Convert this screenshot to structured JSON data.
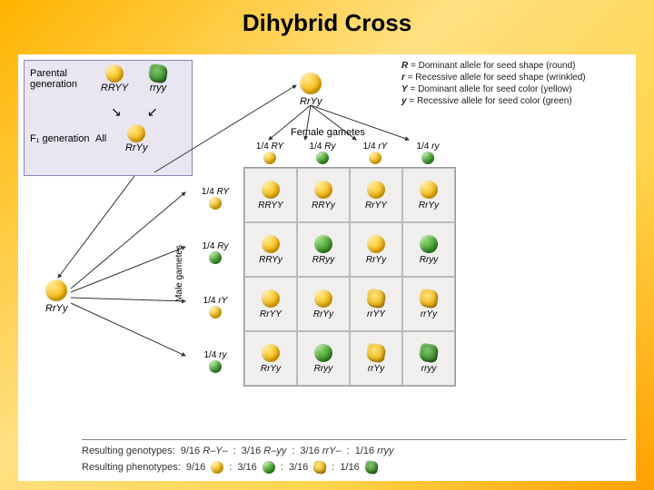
{
  "title": "Dihybrid Cross",
  "title_fontsize": 26,
  "background_gradient": [
    "#ffb300",
    "#ffc838",
    "#ffe082",
    "#ffd54f",
    "#ffa000"
  ],
  "parental_box": {
    "border_color": "#8c7fc2",
    "bg_color": "#e9e6f2",
    "row1_label": "Parental generation",
    "p1": {
      "color": "yellow",
      "wrinkled": false,
      "genotype": "RRYY"
    },
    "p2": {
      "color": "green",
      "wrinkled": true,
      "genotype": "rryy"
    },
    "row2_label": "F₁ generation",
    "row2_note": "All",
    "f1": {
      "color": "yellow",
      "wrinkled": false,
      "genotype": "RrYy"
    }
  },
  "legend": [
    {
      "sym": "R",
      "text": " = Dominant allele for seed shape (round)"
    },
    {
      "sym": "r",
      "text": " = Recessive allele for seed shape (wrinkled)"
    },
    {
      "sym": "Y",
      "text": " = Dominant allele for seed color (yellow)"
    },
    {
      "sym": "y",
      "text": " = Recessive allele for seed color (green)"
    }
  ],
  "cross_parent": {
    "genotype": "RrYy",
    "color": "yellow",
    "wrinkled": false
  },
  "female_label": "Female gametes",
  "male_label": "Male gametes",
  "gametes": [
    "RY",
    "Ry",
    "rY",
    "ry"
  ],
  "gamete_fraction": "1/4",
  "seed_colors": {
    "yellow": "#f5b400",
    "green": "#2e8b1f"
  },
  "grid": [
    [
      {
        "g": "RRYY",
        "c": "y",
        "w": false
      },
      {
        "g": "RRYy",
        "c": "y",
        "w": false
      },
      {
        "g": "RrYY",
        "c": "y",
        "w": false
      },
      {
        "g": "RrYy",
        "c": "y",
        "w": false
      }
    ],
    [
      {
        "g": "RRYy",
        "c": "y",
        "w": false
      },
      {
        "g": "RRyy",
        "c": "g",
        "w": false
      },
      {
        "g": "RrYy",
        "c": "y",
        "w": false
      },
      {
        "g": "Rryy",
        "c": "g",
        "w": false
      }
    ],
    [
      {
        "g": "RrYY",
        "c": "y",
        "w": false
      },
      {
        "g": "RrYy",
        "c": "y",
        "w": false
      },
      {
        "g": "rrYY",
        "c": "y",
        "w": true
      },
      {
        "g": "rrYy",
        "c": "y",
        "w": true
      }
    ],
    [
      {
        "g": "RrYy",
        "c": "y",
        "w": false
      },
      {
        "g": "Rryy",
        "c": "g",
        "w": false
      },
      {
        "g": "rrYy",
        "c": "y",
        "w": true
      },
      {
        "g": "rryy",
        "c": "g",
        "w": true
      }
    ]
  ],
  "results": {
    "genotype_label": "Resulting genotypes:",
    "genotype_ratios": [
      {
        "n": "9/16",
        "g": "R–Y–"
      },
      {
        "n": "3/16",
        "g": "R–yy"
      },
      {
        "n": "3/16",
        "g": "rrY–"
      },
      {
        "n": "1/16",
        "g": "rryy"
      }
    ],
    "phenotype_label": "Resulting phenotypes:",
    "phenotype_ratios": [
      {
        "n": "9/16",
        "c": "y",
        "w": false
      },
      {
        "n": "3/16",
        "c": "g",
        "w": false
      },
      {
        "n": "3/16",
        "c": "y",
        "w": true
      },
      {
        "n": "1/16",
        "c": "g",
        "w": true
      }
    ]
  },
  "arrows_color": "#333"
}
